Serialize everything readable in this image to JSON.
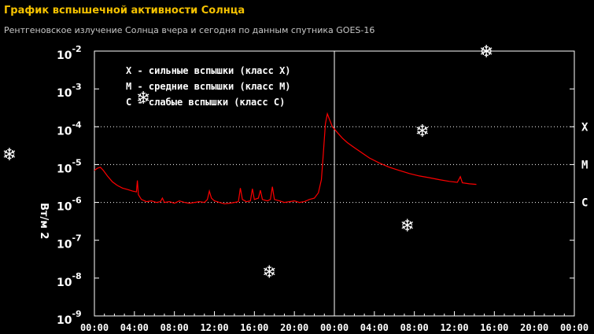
{
  "title": "График вспышечной активности Солнца",
  "subtitle": "Рентгеновское излучение Солнца вчера и сегодня по данным спутника GOES-16",
  "chart_data": {
    "type": "line",
    "title": "График вспышечной активности Солнца",
    "ylabel": "Вт/м 2",
    "yscale": "log",
    "ylim": [
      1e-09,
      0.01
    ],
    "xlim": [
      0,
      48
    ],
    "y_ticks": [
      {
        "base": "10",
        "exp": "-2",
        "value": 0.01
      },
      {
        "base": "10",
        "exp": "-3",
        "value": 0.001
      },
      {
        "base": "10",
        "exp": "-4",
        "value": 0.0001
      },
      {
        "base": "10",
        "exp": "-5",
        "value": 1e-05
      },
      {
        "base": "10",
        "exp": "-6",
        "value": 1e-06
      },
      {
        "base": "10",
        "exp": "-7",
        "value": 1e-07
      },
      {
        "base": "10",
        "exp": "-8",
        "value": 1e-08
      },
      {
        "base": "10",
        "exp": "-9",
        "value": 1e-09
      }
    ],
    "x_ticks": [
      {
        "label": "00:00",
        "hour": 0
      },
      {
        "label": "04:00",
        "hour": 4
      },
      {
        "label": "08:00",
        "hour": 8
      },
      {
        "label": "12:00",
        "hour": 12
      },
      {
        "label": "16:00",
        "hour": 16
      },
      {
        "label": "20:00",
        "hour": 20
      },
      {
        "label": "00:00",
        "hour": 24
      },
      {
        "label": "04:00",
        "hour": 28
      },
      {
        "label": "08:00",
        "hour": 32
      },
      {
        "label": "12:00",
        "hour": 36
      },
      {
        "label": "16:00",
        "hour": 40
      },
      {
        "label": "20:00",
        "hour": 44
      },
      {
        "label": "00:00",
        "hour": 48
      }
    ],
    "day_divider_hour": 24,
    "thresholds": [
      {
        "label": "X",
        "value": 0.0001
      },
      {
        "label": "M",
        "value": 1e-05
      },
      {
        "label": "C",
        "value": 1e-06
      }
    ],
    "legend": [
      "X - сильные вспышки (класс X)",
      "M - средние вспышки (класс M)",
      "C - слабые вспышки (класс C)"
    ],
    "grid": "dotted at class thresholds",
    "series": [
      {
        "color": "#ff0000",
        "points": [
          [
            0,
            7e-06
          ],
          [
            0.3,
            8e-06
          ],
          [
            0.6,
            8.5e-06
          ],
          [
            0.9,
            7e-06
          ],
          [
            1.3,
            5e-06
          ],
          [
            1.8,
            3.5e-06
          ],
          [
            2.3,
            2.8e-06
          ],
          [
            2.8,
            2.4e-06
          ],
          [
            3.3,
            2.2e-06
          ],
          [
            3.8,
            2e-06
          ],
          [
            4.2,
            1.9e-06
          ],
          [
            4.3,
            3.8e-06
          ],
          [
            4.4,
            1.6e-06
          ],
          [
            4.7,
            1.2e-06
          ],
          [
            5.2,
            1.05e-06
          ],
          [
            5.7,
            1.1e-06
          ],
          [
            6.2,
            1e-06
          ],
          [
            6.6,
            1.05e-06
          ],
          [
            6.8,
            1.3e-06
          ],
          [
            7.0,
            1e-06
          ],
          [
            7.5,
            1.05e-06
          ],
          [
            8.0,
            9.5e-07
          ],
          [
            8.5,
            1.1e-06
          ],
          [
            9.0,
            1e-06
          ],
          [
            9.5,
            9.5e-07
          ],
          [
            10.0,
            1e-06
          ],
          [
            10.5,
            1.05e-06
          ],
          [
            11.0,
            1e-06
          ],
          [
            11.3,
            1.2e-06
          ],
          [
            11.5,
            2e-06
          ],
          [
            11.7,
            1.3e-06
          ],
          [
            12.0,
            1.1e-06
          ],
          [
            12.5,
            1e-06
          ],
          [
            13.0,
            9.2e-07
          ],
          [
            13.5,
            9.5e-07
          ],
          [
            14.0,
            1e-06
          ],
          [
            14.4,
            1.05e-06
          ],
          [
            14.6,
            2.4e-06
          ],
          [
            14.8,
            1.2e-06
          ],
          [
            15.2,
            1.05e-06
          ],
          [
            15.6,
            1.1e-06
          ],
          [
            15.8,
            2.3e-06
          ],
          [
            16.0,
            1.2e-06
          ],
          [
            16.4,
            1.3e-06
          ],
          [
            16.6,
            2.1e-06
          ],
          [
            16.8,
            1.2e-06
          ],
          [
            17.3,
            1.1e-06
          ],
          [
            17.6,
            1.2e-06
          ],
          [
            17.8,
            2.6e-06
          ],
          [
            18.0,
            1.2e-06
          ],
          [
            18.5,
            1.1e-06
          ],
          [
            19.0,
            1e-06
          ],
          [
            19.5,
            1.05e-06
          ],
          [
            20.0,
            1.1e-06
          ],
          [
            20.5,
            1e-06
          ],
          [
            21.0,
            1.05e-06
          ],
          [
            21.5,
            1.2e-06
          ],
          [
            22.0,
            1.3e-06
          ],
          [
            22.4,
            1.8e-06
          ],
          [
            22.7,
            4e-06
          ],
          [
            22.9,
            2e-05
          ],
          [
            23.1,
            0.00012
          ],
          [
            23.3,
            0.00022
          ],
          [
            23.5,
            0.00016
          ],
          [
            23.8,
            0.0001
          ],
          [
            24.3,
            7e-05
          ],
          [
            24.8,
            5e-05
          ],
          [
            25.3,
            3.8e-05
          ],
          [
            26.0,
            2.8e-05
          ],
          [
            26.8,
            2e-05
          ],
          [
            27.5,
            1.5e-05
          ],
          [
            28.5,
            1.1e-05
          ],
          [
            29.5,
            8.5e-06
          ],
          [
            30.5,
            7e-06
          ],
          [
            31.5,
            5.8e-06
          ],
          [
            32.5,
            5e-06
          ],
          [
            33.5,
            4.5e-06
          ],
          [
            34.5,
            4e-06
          ],
          [
            35.5,
            3.6e-06
          ],
          [
            36.3,
            3.4e-06
          ],
          [
            36.6,
            4.8e-06
          ],
          [
            36.8,
            3.3e-06
          ],
          [
            37.5,
            3.1e-06
          ],
          [
            38.2,
            3e-06
          ]
        ]
      }
    ],
    "markers": [
      {
        "symbol": "❄",
        "hour": 4.9,
        "value": 0.0006
      },
      {
        "symbol": "❄",
        "hour": 17.5,
        "value": 1.5e-08
      },
      {
        "symbol": "❄",
        "hour": 32.8,
        "value": 8e-05
      },
      {
        "symbol": "❄",
        "hour": 31.3,
        "value": 2.5e-07
      },
      {
        "symbol": "❄",
        "hour": 39.2,
        "value": 0.01
      }
    ],
    "side_marker": {
      "symbol": "❄"
    }
  }
}
